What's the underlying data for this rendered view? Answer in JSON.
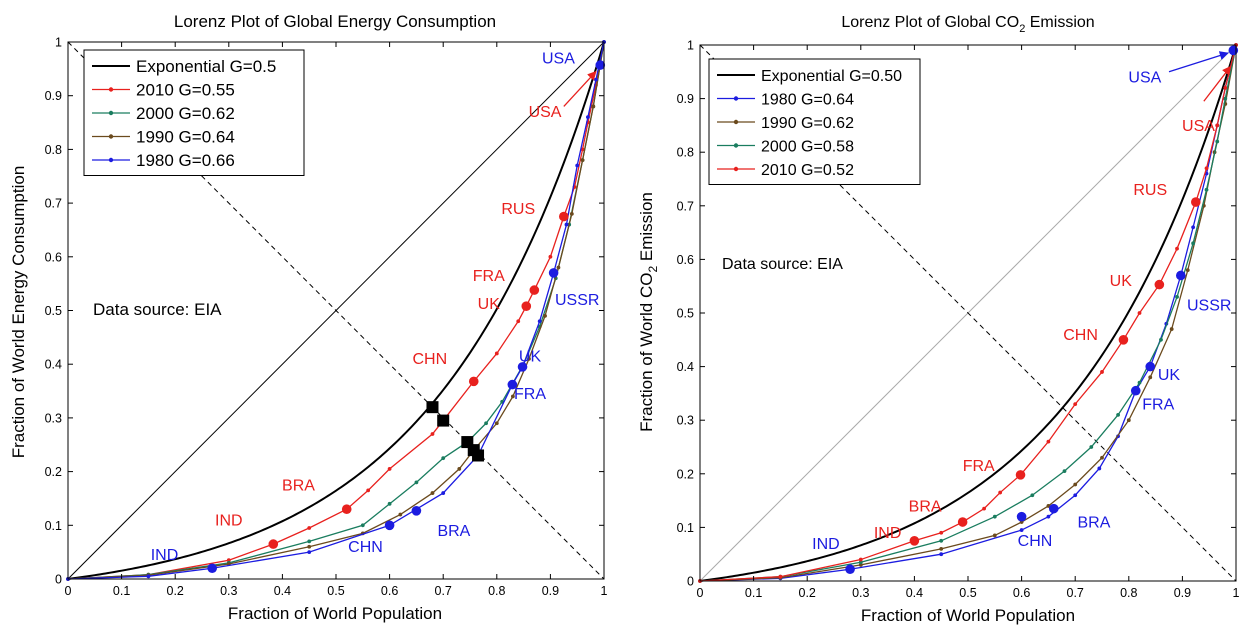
{
  "chart_data": [
    {
      "type": "line",
      "title": "Lorenz Plot of Global Energy Consumption",
      "xlabel": "Fraction of World Population",
      "ylabel": "Fraction of World Energy Consumption",
      "xlim": [
        0,
        1
      ],
      "ylim": [
        0,
        1
      ],
      "xticks": [
        "0",
        "0.1",
        "0.2",
        "0.3",
        "0.4",
        "0.5",
        "0.6",
        "0.7",
        "0.8",
        "0.9",
        "1"
      ],
      "yticks": [
        "0",
        "0.1",
        "0.2",
        "0.3",
        "0.4",
        "0.5",
        "0.6",
        "0.7",
        "0.8",
        "0.9",
        "1"
      ],
      "grid": false,
      "legend_position": "top-left",
      "note": "Data source: EIA",
      "exponential": {
        "name": "Exponential G=0.5",
        "color": "#000000",
        "a": 3.25
      },
      "series": [
        {
          "name": "2010 G=0.55",
          "color": "#e8211e",
          "x": [
            0,
            0.15,
            0.3,
            0.383,
            0.45,
            0.52,
            0.56,
            0.6,
            0.68,
            0.7,
            0.757,
            0.8,
            0.84,
            0.855,
            0.87,
            0.9,
            0.925,
            0.945,
            0.96,
            0.97,
            0.985,
            1
          ],
          "y": [
            0,
            0.008,
            0.035,
            0.065,
            0.095,
            0.13,
            0.165,
            0.205,
            0.27,
            0.295,
            0.368,
            0.42,
            0.48,
            0.508,
            0.538,
            0.6,
            0.675,
            0.73,
            0.8,
            0.85,
            0.92,
            1
          ]
        },
        {
          "name": "2000 G=0.62",
          "color": "#1a7d5f",
          "x": [
            0,
            0.15,
            0.3,
            0.45,
            0.55,
            0.6,
            0.65,
            0.7,
            0.745,
            0.78,
            0.81,
            0.85,
            0.88,
            0.91,
            0.935,
            0.96,
            0.98,
            1
          ],
          "y": [
            0,
            0.008,
            0.03,
            0.07,
            0.1,
            0.14,
            0.18,
            0.225,
            0.255,
            0.29,
            0.33,
            0.4,
            0.47,
            0.56,
            0.66,
            0.78,
            0.88,
            1
          ]
        },
        {
          "name": "1990 G=0.64",
          "color": "#6b4a1d",
          "x": [
            0,
            0.15,
            0.3,
            0.45,
            0.55,
            0.62,
            0.68,
            0.73,
            0.757,
            0.8,
            0.83,
            0.86,
            0.89,
            0.915,
            0.94,
            0.96,
            0.98,
            1
          ],
          "y": [
            0,
            0.007,
            0.028,
            0.06,
            0.085,
            0.12,
            0.16,
            0.205,
            0.24,
            0.29,
            0.34,
            0.41,
            0.49,
            0.58,
            0.68,
            0.78,
            0.88,
            1
          ]
        },
        {
          "name": "1980 G=0.66",
          "color": "#1c1ce0",
          "x": [
            0,
            0.15,
            0.269,
            0.45,
            0.6,
            0.65,
            0.7,
            0.765,
            0.829,
            0.848,
            0.88,
            0.906,
            0.93,
            0.95,
            0.97,
            0.985,
            1
          ],
          "y": [
            0,
            0.005,
            0.02,
            0.05,
            0.1,
            0.13,
            0.16,
            0.23,
            0.362,
            0.395,
            0.48,
            0.57,
            0.66,
            0.77,
            0.86,
            0.93,
            1
          ]
        }
      ],
      "markers": [
        {
          "x": 0.383,
          "y": 0.065,
          "color": "#e8211e"
        },
        {
          "x": 0.52,
          "y": 0.13,
          "color": "#e8211e"
        },
        {
          "x": 0.757,
          "y": 0.368,
          "color": "#e8211e"
        },
        {
          "x": 0.855,
          "y": 0.508,
          "color": "#e8211e"
        },
        {
          "x": 0.87,
          "y": 0.538,
          "color": "#e8211e"
        },
        {
          "x": 0.925,
          "y": 0.675,
          "color": "#e8211e"
        },
        {
          "x": 0.269,
          "y": 0.02,
          "color": "#1c1ce0"
        },
        {
          "x": 0.6,
          "y": 0.1,
          "color": "#1c1ce0"
        },
        {
          "x": 0.65,
          "y": 0.127,
          "color": "#1c1ce0"
        },
        {
          "x": 0.829,
          "y": 0.362,
          "color": "#1c1ce0"
        },
        {
          "x": 0.848,
          "y": 0.395,
          "color": "#1c1ce0"
        },
        {
          "x": 0.906,
          "y": 0.57,
          "color": "#1c1ce0"
        },
        {
          "x": 0.993,
          "y": 0.957,
          "color": "#1c1ce0"
        }
      ],
      "squares": [
        {
          "x": 0.68,
          "y": 0.32
        },
        {
          "x": 0.7,
          "y": 0.295
        },
        {
          "x": 0.745,
          "y": 0.255
        },
        {
          "x": 0.757,
          "y": 0.24
        },
        {
          "x": 0.765,
          "y": 0.23
        }
      ],
      "annotations": [
        {
          "text": "IND",
          "x": 0.3,
          "y": 0.1,
          "color": "#e8211e"
        },
        {
          "text": "BRA",
          "x": 0.43,
          "y": 0.165,
          "color": "#e8211e"
        },
        {
          "text": "CHN",
          "x": 0.675,
          "y": 0.4,
          "color": "#e8211e"
        },
        {
          "text": "FRA",
          "x": 0.785,
          "y": 0.555,
          "color": "#e8211e"
        },
        {
          "text": "UK",
          "x": 0.785,
          "y": 0.503,
          "color": "#e8211e"
        },
        {
          "text": "RUS",
          "x": 0.84,
          "y": 0.68,
          "color": "#e8211e"
        },
        {
          "text": "USA",
          "x": 0.89,
          "y": 0.86,
          "color": "#e8211e"
        },
        {
          "text": "IND",
          "x": 0.18,
          "y": 0.035,
          "color": "#1c1ce0"
        },
        {
          "text": "CHN",
          "x": 0.555,
          "y": 0.05,
          "color": "#1c1ce0"
        },
        {
          "text": "BRA",
          "x": 0.72,
          "y": 0.08,
          "color": "#1c1ce0"
        },
        {
          "text": "UK",
          "x": 0.862,
          "y": 0.405,
          "color": "#1c1ce0"
        },
        {
          "text": "FRA",
          "x": 0.862,
          "y": 0.335,
          "color": "#1c1ce0"
        },
        {
          "text": "USSR",
          "x": 0.95,
          "y": 0.51,
          "color": "#1c1ce0"
        },
        {
          "text": "USA",
          "x": 0.915,
          "y": 0.96,
          "color": "#1c1ce0"
        }
      ],
      "arrows": [
        {
          "x1": 0.925,
          "y1": 0.88,
          "x2": 0.985,
          "y2": 0.945,
          "color": "#e8211e"
        }
      ]
    },
    {
      "type": "line",
      "title": "Lorenz Plot of Global CO",
      "title_subscript": "2",
      "title_suffix": " Emission",
      "xlabel": "Fraction of World Population",
      "ylabel": "Fraction of World CO",
      "ylabel_subscript": "2",
      "ylabel_suffix": " Emission",
      "xlim": [
        0,
        1
      ],
      "ylim": [
        0,
        1
      ],
      "xticks": [
        "0",
        "0.1",
        "0.2",
        "0.3",
        "0.4",
        "0.5",
        "0.6",
        "0.7",
        "0.8",
        "0.9",
        "1"
      ],
      "yticks": [
        "0",
        "0.1",
        "0.2",
        "0.3",
        "0.4",
        "0.5",
        "0.6",
        "0.7",
        "0.8",
        "0.9",
        "1"
      ],
      "grid": false,
      "legend_position": "top-left",
      "note": "Data source: EIA",
      "exponential": {
        "name": "Exponential G=0.50",
        "color": "#000000",
        "a": 3.25
      },
      "series": [
        {
          "name": "1980 G=0.64",
          "color": "#1c1ce0",
          "x": [
            0,
            0.15,
            0.28,
            0.45,
            0.6,
            0.65,
            0.7,
            0.745,
            0.78,
            0.813,
            0.84,
            0.87,
            0.897,
            0.92,
            0.945,
            0.965,
            0.98,
            1
          ],
          "y": [
            0,
            0.005,
            0.022,
            0.05,
            0.095,
            0.12,
            0.16,
            0.21,
            0.27,
            0.355,
            0.4,
            0.48,
            0.57,
            0.66,
            0.76,
            0.85,
            0.92,
            1
          ]
        },
        {
          "name": "1990 G=0.62",
          "color": "#6b4a1d",
          "x": [
            0,
            0.15,
            0.3,
            0.45,
            0.55,
            0.6,
            0.65,
            0.7,
            0.75,
            0.8,
            0.84,
            0.88,
            0.91,
            0.94,
            0.96,
            0.98,
            1
          ],
          "y": [
            0,
            0.006,
            0.03,
            0.06,
            0.085,
            0.11,
            0.14,
            0.18,
            0.23,
            0.3,
            0.38,
            0.47,
            0.58,
            0.7,
            0.8,
            0.89,
            1
          ]
        },
        {
          "name": "2000 G=0.58",
          "color": "#1a7d5f",
          "x": [
            0,
            0.15,
            0.3,
            0.45,
            0.55,
            0.62,
            0.68,
            0.73,
            0.78,
            0.82,
            0.86,
            0.89,
            0.92,
            0.945,
            0.965,
            0.98,
            1
          ],
          "y": [
            0,
            0.008,
            0.035,
            0.075,
            0.12,
            0.16,
            0.205,
            0.25,
            0.31,
            0.37,
            0.45,
            0.53,
            0.63,
            0.73,
            0.82,
            0.9,
            1
          ]
        },
        {
          "name": "2010 G=0.52",
          "color": "#e8211e",
          "x": [
            0,
            0.15,
            0.3,
            0.4,
            0.45,
            0.49,
            0.53,
            0.56,
            0.598,
            0.65,
            0.7,
            0.75,
            0.79,
            0.82,
            0.857,
            0.89,
            0.925,
            0.945,
            0.965,
            0.98,
            1
          ],
          "y": [
            0,
            0.008,
            0.04,
            0.075,
            0.09,
            0.11,
            0.135,
            0.165,
            0.198,
            0.26,
            0.33,
            0.39,
            0.45,
            0.5,
            0.553,
            0.62,
            0.707,
            0.77,
            0.85,
            0.92,
            1
          ]
        }
      ],
      "markers": [
        {
          "x": 0.4,
          "y": 0.075,
          "color": "#e8211e"
        },
        {
          "x": 0.49,
          "y": 0.11,
          "color": "#e8211e"
        },
        {
          "x": 0.598,
          "y": 0.198,
          "color": "#e8211e"
        },
        {
          "x": 0.79,
          "y": 0.45,
          "color": "#e8211e"
        },
        {
          "x": 0.857,
          "y": 0.553,
          "color": "#e8211e"
        },
        {
          "x": 0.925,
          "y": 0.707,
          "color": "#e8211e"
        },
        {
          "x": 0.28,
          "y": 0.022,
          "color": "#1c1ce0"
        },
        {
          "x": 0.6,
          "y": 0.12,
          "color": "#1c1ce0"
        },
        {
          "x": 0.66,
          "y": 0.135,
          "color": "#1c1ce0"
        },
        {
          "x": 0.813,
          "y": 0.355,
          "color": "#1c1ce0"
        },
        {
          "x": 0.84,
          "y": 0.4,
          "color": "#1c1ce0"
        },
        {
          "x": 0.897,
          "y": 0.57,
          "color": "#1c1ce0"
        },
        {
          "x": 0.995,
          "y": 0.99,
          "color": "#1c1ce0"
        }
      ],
      "squares": [],
      "annotations": [
        {
          "text": "IND",
          "x": 0.35,
          "y": 0.08,
          "color": "#e8211e"
        },
        {
          "text": "BRA",
          "x": 0.42,
          "y": 0.13,
          "color": "#e8211e"
        },
        {
          "text": "FRA",
          "x": 0.52,
          "y": 0.205,
          "color": "#e8211e"
        },
        {
          "text": "CHN",
          "x": 0.71,
          "y": 0.45,
          "color": "#e8211e"
        },
        {
          "text": "UK",
          "x": 0.785,
          "y": 0.55,
          "color": "#e8211e"
        },
        {
          "text": "RUS",
          "x": 0.84,
          "y": 0.72,
          "color": "#e8211e"
        },
        {
          "text": "USA",
          "x": 0.93,
          "y": 0.84,
          "color": "#e8211e"
        },
        {
          "text": "IND",
          "x": 0.235,
          "y": 0.06,
          "color": "#1c1ce0"
        },
        {
          "text": "CHN",
          "x": 0.625,
          "y": 0.065,
          "color": "#1c1ce0"
        },
        {
          "text": "BRA",
          "x": 0.735,
          "y": 0.1,
          "color": "#1c1ce0"
        },
        {
          "text": "UK",
          "x": 0.875,
          "y": 0.375,
          "color": "#1c1ce0"
        },
        {
          "text": "FRA",
          "x": 0.855,
          "y": 0.32,
          "color": "#1c1ce0"
        },
        {
          "text": "USSR",
          "x": 0.95,
          "y": 0.505,
          "color": "#1c1ce0"
        },
        {
          "text": "USA",
          "x": 0.83,
          "y": 0.93,
          "color": "#1c1ce0"
        }
      ],
      "arrows": [
        {
          "x1": 0.875,
          "y1": 0.95,
          "x2": 0.985,
          "y2": 0.985,
          "color": "#1c1ce0"
        },
        {
          "x1": 0.94,
          "y1": 0.895,
          "x2": 0.99,
          "y2": 0.96,
          "color": "#e8211e"
        }
      ]
    }
  ]
}
